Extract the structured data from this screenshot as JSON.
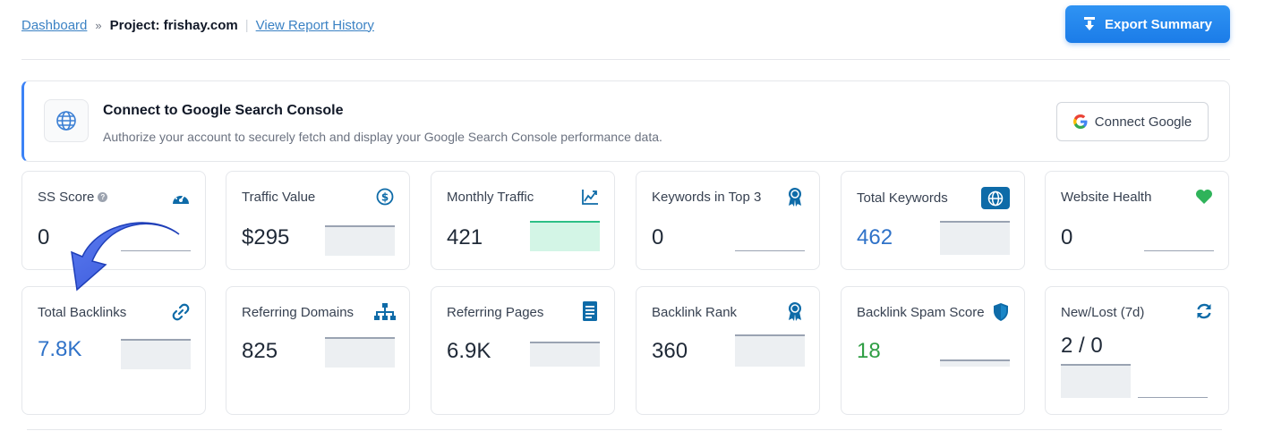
{
  "breadcrumb": {
    "home": "Dashboard",
    "separator": "»",
    "current": "Project: frishay.com",
    "divider": "|",
    "history": "View Report History"
  },
  "export_button": {
    "label": "Export Summary",
    "icon": "download-icon"
  },
  "gsc_banner": {
    "icon": "globe-icon",
    "title": "Connect to Google Search Console",
    "description": "Authorize your account to securely fetch and display your Google Search Console performance data.",
    "button_label": "Connect Google",
    "button_icon": "google-g-icon"
  },
  "metrics_row1": [
    {
      "label": "SS Score",
      "value": "0",
      "icon": "gauge-icon",
      "info": "?"
    },
    {
      "label": "Traffic Value",
      "value": "$295",
      "icon": "dollar-circle-icon"
    },
    {
      "label": "Monthly Traffic",
      "value": "421",
      "icon": "trend-chart-icon"
    },
    {
      "label": "Keywords in Top 3",
      "value": "0",
      "icon": "award-icon"
    },
    {
      "label": "Total Keywords",
      "value": "462",
      "icon": "globe-badge-icon"
    },
    {
      "label": "Website Health",
      "value": "0",
      "icon": "heart-icon"
    }
  ],
  "metrics_row2": [
    {
      "label": "Total Backlinks",
      "value": "7.8K",
      "icon": "link-icon"
    },
    {
      "label": "Referring Domains",
      "value": "825",
      "icon": "sitemap-icon"
    },
    {
      "label": "Referring Pages",
      "value": "6.9K",
      "icon": "document-icon"
    },
    {
      "label": "Backlink Rank",
      "value": "360",
      "icon": "award-icon"
    },
    {
      "label": "Backlink Spam Score",
      "value": "18",
      "icon": "shield-icon"
    },
    {
      "label": "New/Lost (7d)",
      "value": "2 / 0",
      "icon": "refresh-icon"
    }
  ],
  "colors": {
    "accent": "#1b7ce8",
    "icon_blue": "#0e6ba8",
    "link_blue": "#3b82c4",
    "heart_green": "#2fb35a",
    "spam_green": "#2f9e44"
  }
}
